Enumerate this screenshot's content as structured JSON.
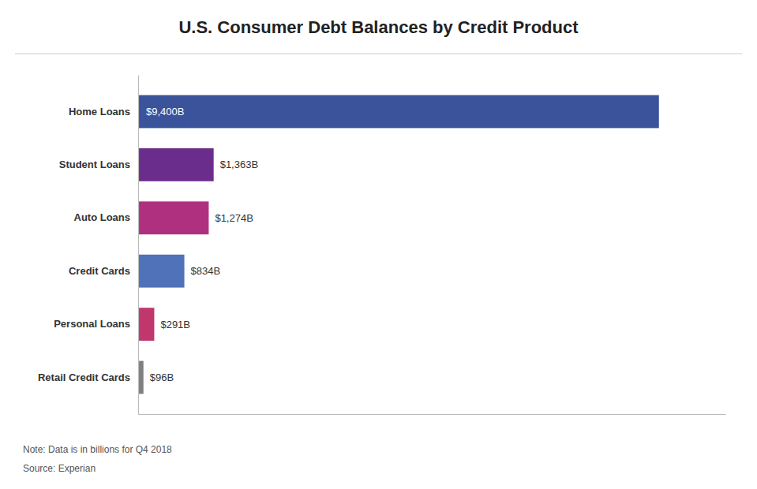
{
  "chart_data": {
    "type": "bar",
    "orientation": "horizontal",
    "title": "U.S. Consumer Debt Balances by Credit Product",
    "categories": [
      "Home Loans",
      "Student Loans",
      "Auto Loans",
      "Credit Cards",
      "Personal Loans",
      "Retail Credit Cards"
    ],
    "values": [
      9400,
      1363,
      1274,
      834,
      291,
      96
    ],
    "value_labels": [
      "$9,400B",
      "$1,363B",
      "$1,274B",
      "$834B",
      "$291B",
      "$96B"
    ],
    "colors": [
      "#3a539b",
      "#6b2d8b",
      "#b03080",
      "#4f72b8",
      "#c0376e",
      "#808080"
    ],
    "xlim": [
      0,
      10600
    ],
    "data_labels": true,
    "tick_labels": "y",
    "grid": false,
    "annotations": [
      "Note: Data is in billions for Q4 2018",
      "Source: Experian"
    ]
  }
}
